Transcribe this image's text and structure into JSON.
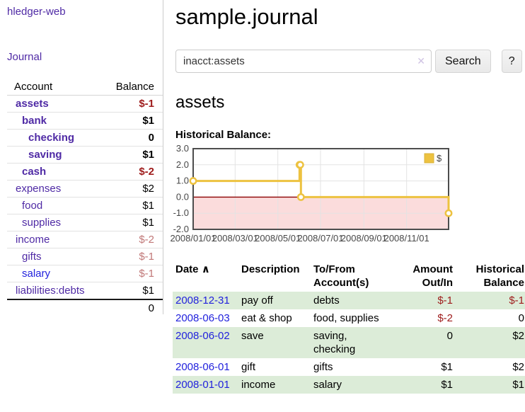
{
  "colors": {
    "link_purple": "#4f2aa5",
    "link_blue": "#2222dd",
    "negative_strong": "#9e1b1b",
    "negative_faded": "#c17878",
    "stripe_green": "#dcecd8",
    "chart_gold": "#edc240",
    "chart_negative_region": "#fbdcdc",
    "chart_zero_line": "#8b0000"
  },
  "sidebar": {
    "brand": "hledger-web",
    "nav": {
      "journal": "Journal"
    },
    "table": {
      "account_header": "Account",
      "balance_header": "Balance",
      "accounts": [
        {
          "name": "assets",
          "balance": "$-1"
        },
        {
          "name": "bank",
          "balance": "$1"
        },
        {
          "name": "checking",
          "balance": "0"
        },
        {
          "name": "saving",
          "balance": "$1"
        },
        {
          "name": "cash",
          "balance": "$-2"
        },
        {
          "name": "expenses",
          "balance": "$2"
        },
        {
          "name": "food",
          "balance": "$1"
        },
        {
          "name": "supplies",
          "balance": "$1"
        },
        {
          "name": "income",
          "balance": "$-2"
        },
        {
          "name": "gifts",
          "balance": "$-1"
        },
        {
          "name": "salary",
          "balance": "$-1"
        },
        {
          "name": "liabilities:debts",
          "balance": "$1"
        }
      ],
      "total": "0"
    }
  },
  "header": {
    "title": "sample.journal"
  },
  "search": {
    "query": "inacct:assets",
    "clear_icon": "✕",
    "search_button": "Search",
    "help_button": "?"
  },
  "account_page": {
    "heading": "assets",
    "chart_label": "Historical Balance:"
  },
  "chart_data": {
    "type": "line",
    "style": "step",
    "title": "Historical Balance",
    "series": [
      {
        "name": "$",
        "color": "#edc240",
        "points": [
          [
            "2008-01-01",
            1
          ],
          [
            "2008-06-01",
            2
          ],
          [
            "2008-06-02",
            2
          ],
          [
            "2008-06-03",
            0
          ],
          [
            "2008-12-31",
            -1
          ]
        ]
      }
    ],
    "x_ticks": [
      "2008/01/01",
      "2008/03/01",
      "2008/05/01",
      "2008/07/01",
      "2008/09/01",
      "2008/11/01"
    ],
    "y_ticks": [
      "3.0",
      "2.0",
      "1.0",
      "0.0",
      "-1.0",
      "-2.0"
    ],
    "xlim": [
      "2008-01-01",
      "2008-12-31"
    ],
    "ylim": [
      -2,
      3
    ],
    "grid": true,
    "legend_position": "top-right",
    "negative_region_color": "#fbdcdc",
    "zero_line_color": "#8b0000"
  },
  "register": {
    "headers": {
      "date": "Date",
      "sort_icon": "∧",
      "description": "Description",
      "account_line1": "To/From",
      "account_line2": "Account(s)",
      "amount_line1": "Amount",
      "amount_line2": "Out/In",
      "balance_line1": "Historical",
      "balance_line2": "Balance"
    },
    "rows": [
      {
        "date": "2008-12-31",
        "description": "pay off",
        "accounts": "debts",
        "amount": "$-1",
        "balance": "$-1"
      },
      {
        "date": "2008-06-03",
        "description": "eat & shop",
        "accounts": "food, supplies",
        "amount": "$-2",
        "balance": "0"
      },
      {
        "date": "2008-06-02",
        "description": "save",
        "accounts": "saving, checking",
        "amount": "0",
        "balance": "$2"
      },
      {
        "date": "2008-06-01",
        "description": "gift",
        "accounts": "gifts",
        "amount": "$1",
        "balance": "$2"
      },
      {
        "date": "2008-01-01",
        "description": "income",
        "accounts": "salary",
        "amount": "$1",
        "balance": "$1"
      }
    ]
  }
}
